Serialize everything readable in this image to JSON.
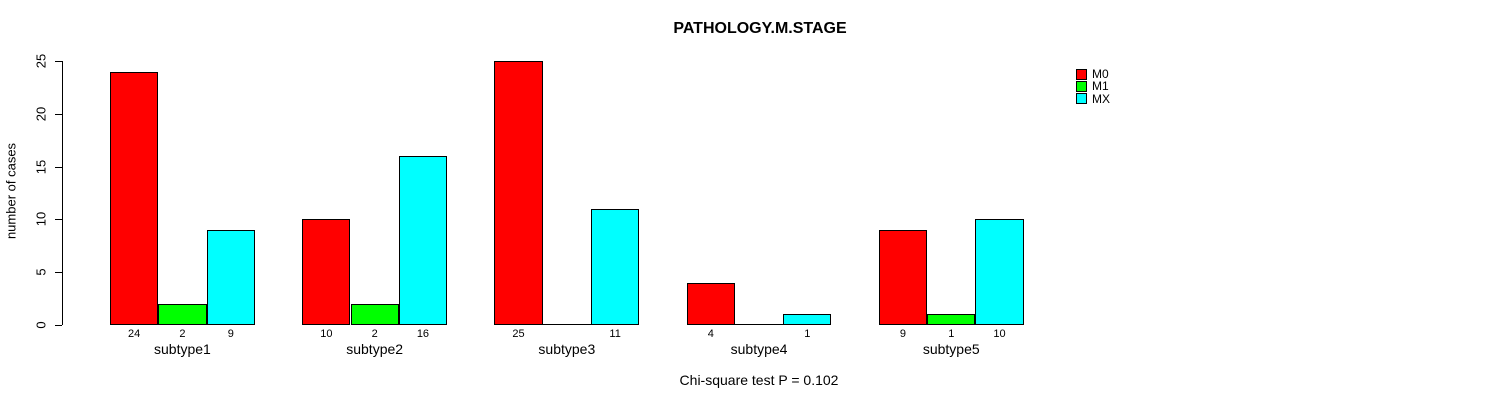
{
  "chart_data": {
    "type": "bar",
    "title": "PATHOLOGY.M.STAGE",
    "ylabel": "number of cases",
    "xlabel": "",
    "ylim": [
      0,
      25
    ],
    "yticks": [
      0,
      5,
      10,
      15,
      20,
      25
    ],
    "categories": [
      "subtype1",
      "subtype2",
      "subtype3",
      "subtype4",
      "subtype5"
    ],
    "series": [
      {
        "name": "M0",
        "color": "#FF0000",
        "values": [
          24,
          10,
          25,
          4,
          9
        ]
      },
      {
        "name": "M1",
        "color": "#00FF00",
        "values": [
          2,
          2,
          0,
          0,
          1
        ]
      },
      {
        "name": "MX",
        "color": "#00FFFF",
        "values": [
          9,
          16,
          11,
          1,
          10
        ]
      }
    ],
    "bar_value_labels_shown": true,
    "grid": false,
    "legend_position": "top-right",
    "annotation": "Chi-square test P = 0.102"
  }
}
